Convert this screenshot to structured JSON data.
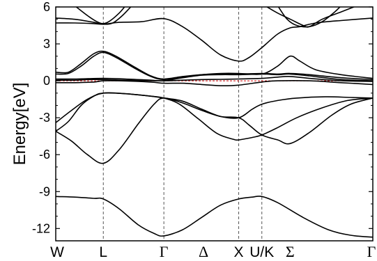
{
  "chart_data": {
    "type": "line",
    "ylabel": "Energy[eV]",
    "xlabel": "",
    "ylim": [
      -13,
      6
    ],
    "yticks": [
      6,
      3,
      0,
      -3,
      -6,
      -9,
      -12
    ],
    "ytick_labels": [
      "6",
      "3",
      "0",
      "-3",
      "-6",
      "-9",
      "-12"
    ],
    "fermi_level": 0,
    "fermi_color": "#cc0000",
    "line_color": "#000000",
    "grid": false,
    "k_points": [
      {
        "label": "W",
        "pos": 0,
        "greek": false,
        "guide": false
      },
      {
        "label": "L",
        "pos": 0.15,
        "greek": false,
        "guide": true
      },
      {
        "label": "Γ",
        "pos": 0.341,
        "greek": true,
        "guide": true
      },
      {
        "label": "Δ",
        "pos": 0.466,
        "greek": true,
        "guide": false
      },
      {
        "label": "X",
        "pos": 0.577,
        "greek": false,
        "guide": true
      },
      {
        "label": "U/K",
        "pos": 0.65,
        "greek": false,
        "guide": true
      },
      {
        "label": "Σ",
        "pos": 0.739,
        "greek": true,
        "guide": false
      },
      {
        "label": "Γ",
        "pos": 1.0,
        "greek": true,
        "guide": false
      }
    ],
    "series": [
      {
        "values": [
          [
            0,
            -9.4
          ],
          [
            0.06,
            -9.45
          ],
          [
            0.12,
            -9.55
          ],
          [
            0.15,
            -9.6
          ],
          [
            0.2,
            -10.4
          ],
          [
            0.26,
            -11.7
          ],
          [
            0.31,
            -12.4
          ],
          [
            0.341,
            -12.6
          ],
          [
            0.4,
            -12.1
          ],
          [
            0.46,
            -11.1
          ],
          [
            0.52,
            -10.1
          ],
          [
            0.577,
            -9.6
          ],
          [
            0.62,
            -9.45
          ],
          [
            0.65,
            -9.4
          ],
          [
            0.7,
            -9.9
          ],
          [
            0.78,
            -11.1
          ],
          [
            0.86,
            -12.1
          ],
          [
            0.93,
            -12.55
          ],
          [
            1.0,
            -12.7
          ]
        ]
      },
      {
        "values": [
          [
            0,
            -4.1
          ],
          [
            0.05,
            -4.9
          ],
          [
            0.1,
            -6.0
          ],
          [
            0.15,
            -6.7
          ],
          [
            0.2,
            -5.6
          ],
          [
            0.26,
            -3.5
          ],
          [
            0.31,
            -1.9
          ],
          [
            0.341,
            -1.4
          ],
          [
            0.4,
            -1.8
          ],
          [
            0.46,
            -2.4
          ],
          [
            0.52,
            -2.9
          ],
          [
            0.577,
            -3.0
          ],
          [
            0.61,
            -3.6
          ],
          [
            0.65,
            -4.4
          ],
          [
            0.7,
            -4.8
          ],
          [
            0.739,
            -5.1
          ],
          [
            0.8,
            -4.2
          ],
          [
            0.87,
            -2.8
          ],
          [
            0.93,
            -1.9
          ],
          [
            1.0,
            -1.4
          ]
        ]
      },
      {
        "values": [
          [
            0,
            -3.4
          ],
          [
            0.05,
            -2.4
          ],
          [
            0.1,
            -1.5
          ],
          [
            0.15,
            -1.0
          ],
          [
            0.22,
            -1.05
          ],
          [
            0.3,
            -1.25
          ],
          [
            0.341,
            -1.4
          ],
          [
            0.4,
            -1.65
          ],
          [
            0.46,
            -2.3
          ],
          [
            0.52,
            -2.9
          ],
          [
            0.577,
            -3.0
          ],
          [
            0.62,
            -2.3
          ],
          [
            0.65,
            -1.9
          ],
          [
            0.7,
            -1.6
          ],
          [
            0.76,
            -1.4
          ],
          [
            0.85,
            -1.3
          ],
          [
            0.93,
            -1.35
          ],
          [
            1.0,
            -1.4
          ]
        ]
      },
      {
        "values": [
          [
            0,
            -4.1
          ],
          [
            0.04,
            -3.3
          ],
          [
            0.08,
            -2.0
          ],
          [
            0.12,
            -1.25
          ],
          [
            0.15,
            -1.0
          ],
          [
            0.22,
            -1.05
          ],
          [
            0.3,
            -1.25
          ],
          [
            0.341,
            -1.4
          ],
          [
            0.39,
            -1.9
          ],
          [
            0.45,
            -3.1
          ],
          [
            0.51,
            -4.3
          ],
          [
            0.56,
            -4.75
          ],
          [
            0.577,
            -4.8
          ],
          [
            0.62,
            -4.6
          ],
          [
            0.65,
            -4.4
          ],
          [
            0.7,
            -3.8
          ],
          [
            0.76,
            -3.0
          ],
          [
            0.84,
            -2.2
          ],
          [
            0.92,
            -1.6
          ],
          [
            1.0,
            -1.4
          ]
        ]
      },
      {
        "values": [
          [
            0,
            0.05
          ],
          [
            0.06,
            0.05
          ],
          [
            0.1,
            0.1
          ],
          [
            0.15,
            0.1
          ],
          [
            0.22,
            0.05
          ],
          [
            0.341,
            0.0
          ],
          [
            0.4,
            0.05
          ],
          [
            0.46,
            0.1
          ],
          [
            0.52,
            0.12
          ],
          [
            0.577,
            0.15
          ],
          [
            0.65,
            0.2
          ],
          [
            0.7,
            0.3
          ],
          [
            0.739,
            0.35
          ],
          [
            0.8,
            0.2
          ],
          [
            0.9,
            0.0
          ],
          [
            1.0,
            -0.05
          ]
        ]
      },
      {
        "values": [
          [
            0,
            0.15
          ],
          [
            0.06,
            0.15
          ],
          [
            0.15,
            0.2
          ],
          [
            0.22,
            0.15
          ],
          [
            0.3,
            0.05
          ],
          [
            0.341,
            0.0
          ],
          [
            0.4,
            0.25
          ],
          [
            0.46,
            0.45
          ],
          [
            0.52,
            0.5
          ],
          [
            0.577,
            0.5
          ],
          [
            0.65,
            0.55
          ],
          [
            0.7,
            0.5
          ],
          [
            0.739,
            0.55
          ],
          [
            0.8,
            0.4
          ],
          [
            0.9,
            0.1
          ],
          [
            1.0,
            0.0
          ]
        ]
      },
      {
        "values": [
          [
            0,
            -0.15
          ],
          [
            0.06,
            -0.15
          ],
          [
            0.12,
            -0.1
          ],
          [
            0.15,
            0.0
          ],
          [
            0.2,
            0.0
          ],
          [
            0.3,
            -0.1
          ],
          [
            0.341,
            -0.2
          ],
          [
            0.4,
            -0.2
          ],
          [
            0.46,
            -0.3
          ],
          [
            0.52,
            -0.4
          ],
          [
            0.577,
            -0.35
          ],
          [
            0.65,
            -0.1
          ],
          [
            0.7,
            0.0
          ],
          [
            0.8,
            0.0
          ],
          [
            0.9,
            -0.15
          ],
          [
            1.0,
            -0.3
          ]
        ]
      },
      {
        "values": [
          [
            0,
            0.55
          ],
          [
            0.04,
            0.6
          ],
          [
            0.08,
            1.2
          ],
          [
            0.12,
            2.0
          ],
          [
            0.15,
            2.3
          ],
          [
            0.19,
            1.9
          ],
          [
            0.25,
            1.0
          ],
          [
            0.3,
            0.35
          ],
          [
            0.341,
            0.1
          ],
          [
            0.4,
            0.3
          ],
          [
            0.46,
            0.5
          ],
          [
            0.52,
            0.55
          ],
          [
            0.577,
            0.55
          ],
          [
            0.65,
            0.6
          ],
          [
            0.7,
            0.55
          ],
          [
            0.739,
            0.6
          ],
          [
            0.8,
            0.5
          ],
          [
            0.9,
            0.25
          ],
          [
            1.0,
            0.1
          ]
        ]
      },
      {
        "values": [
          [
            0,
            0.7
          ],
          [
            0.04,
            0.7
          ],
          [
            0.08,
            1.4
          ],
          [
            0.12,
            2.2
          ],
          [
            0.15,
            2.4
          ],
          [
            0.19,
            2.0
          ],
          [
            0.25,
            1.1
          ],
          [
            0.3,
            0.4
          ],
          [
            0.341,
            0.15
          ],
          [
            0.4,
            0.35
          ],
          [
            0.46,
            0.5
          ],
          [
            0.52,
            0.6
          ],
          [
            0.577,
            0.6
          ],
          [
            0.65,
            0.55
          ],
          [
            0.7,
            1.2
          ],
          [
            0.739,
            2.0
          ],
          [
            0.77,
            1.6
          ],
          [
            0.82,
            0.9
          ],
          [
            0.9,
            0.5
          ],
          [
            1.0,
            0.2
          ]
        ]
      },
      {
        "values": [
          [
            0,
            4.7
          ],
          [
            0.06,
            4.7
          ],
          [
            0.12,
            4.65
          ],
          [
            0.15,
            4.6
          ],
          [
            0.2,
            4.75
          ],
          [
            0.27,
            4.8
          ],
          [
            0.341,
            5.05
          ],
          [
            0.4,
            4.4
          ],
          [
            0.46,
            3.3
          ],
          [
            0.52,
            2.1
          ],
          [
            0.577,
            1.6
          ],
          [
            0.61,
            1.9
          ],
          [
            0.65,
            2.7
          ],
          [
            0.7,
            3.8
          ],
          [
            0.739,
            4.3
          ],
          [
            0.77,
            4.4
          ],
          [
            0.82,
            4.7
          ],
          [
            0.9,
            4.9
          ],
          [
            1.0,
            5.1
          ]
        ]
      },
      {
        "values": [
          [
            0,
            5.1
          ],
          [
            0.06,
            5.0
          ],
          [
            0.12,
            4.75
          ],
          [
            0.15,
            4.6
          ],
          [
            0.18,
            4.7
          ],
          [
            0.21,
            5.3
          ],
          [
            0.24,
            6.1
          ]
        ]
      },
      {
        "values": [
          [
            0.06,
            6.1
          ],
          [
            0.1,
            5.3
          ],
          [
            0.13,
            4.8
          ],
          [
            0.15,
            4.65
          ],
          [
            0.17,
            4.85
          ],
          [
            0.2,
            5.5
          ],
          [
            0.22,
            6.1
          ]
        ]
      },
      {
        "values": [
          [
            0.7,
            6.1
          ],
          [
            0.73,
            5.0
          ],
          [
            0.76,
            4.5
          ],
          [
            0.8,
            4.4
          ],
          [
            0.84,
            4.8
          ],
          [
            0.88,
            5.6
          ],
          [
            0.9,
            6.1
          ]
        ]
      },
      {
        "values": [
          [
            0.66,
            6.1
          ],
          [
            0.7,
            5.5
          ],
          [
            0.74,
            5.0
          ],
          [
            0.78,
            4.5
          ],
          [
            0.8,
            4.4
          ],
          [
            0.84,
            5.0
          ],
          [
            0.9,
            5.6
          ],
          [
            0.95,
            6.1
          ]
        ]
      }
    ]
  }
}
